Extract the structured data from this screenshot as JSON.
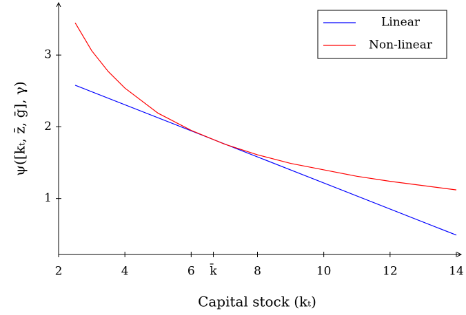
{
  "chart_data": {
    "type": "line",
    "xlabel": "Capital stock (kₜ)",
    "ylabel": "ψ([kₜ, z̄, ḡ], γ)",
    "series": [
      {
        "name": "Linear",
        "color": "#0000ff",
        "x": [
          2.5,
          14
        ],
        "values": [
          2.58,
          0.49
        ]
      },
      {
        "name": "Non-linear",
        "color": "#ff0000",
        "x": [
          2.5,
          3,
          3.5,
          4,
          5,
          6,
          7,
          8,
          9,
          10,
          11,
          12,
          13,
          14
        ],
        "values": [
          3.45,
          3.06,
          2.77,
          2.54,
          2.19,
          1.95,
          1.76,
          1.61,
          1.49,
          1.4,
          1.31,
          1.24,
          1.18,
          1.12
        ]
      }
    ],
    "xlim": [
      2,
      14
    ],
    "ylim": [
      0.22,
      3.72
    ],
    "xticks": [
      2,
      4,
      6,
      {
        "value": 6.67,
        "label": "k̄"
      },
      8,
      10,
      12,
      14
    ],
    "yticks": [
      1,
      2,
      3
    ],
    "legend": "upper right"
  }
}
